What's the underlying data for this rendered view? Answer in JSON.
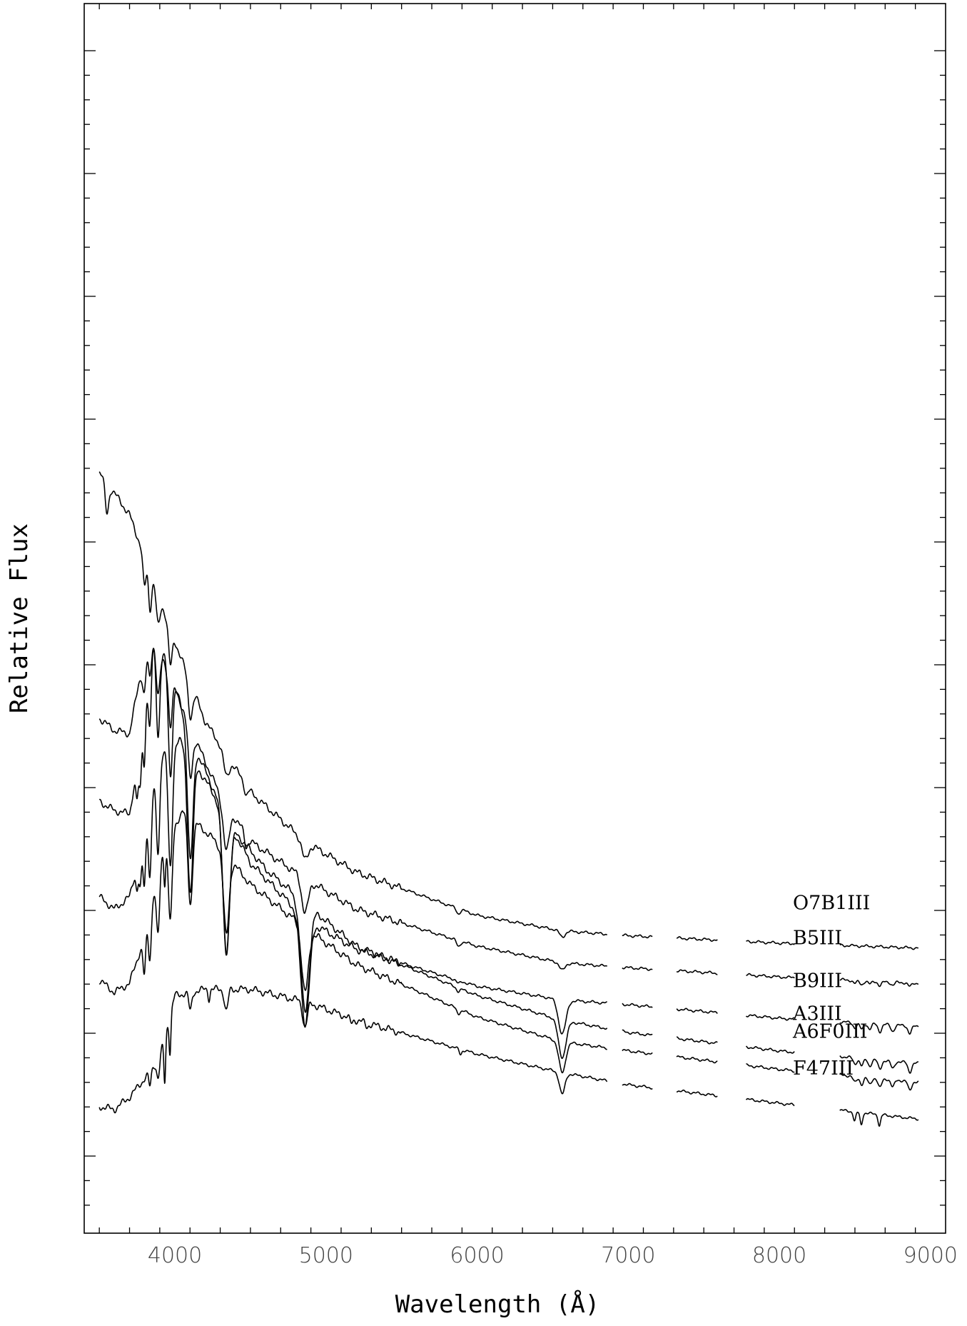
{
  "chart_data": {
    "type": "line",
    "xlabel": "Wavelength (Å)",
    "ylabel": "Relative Flux",
    "xlim": [
      3400,
      9100
    ],
    "xticks": [
      4000,
      5000,
      6000,
      7000,
      8000,
      9000
    ],
    "yticks_labeled": false,
    "grid": false,
    "legend": "labels at right end of each spectrum",
    "series": [
      {
        "name": "O7B1III",
        "offset": 5,
        "continuum": [
          [
            3500,
            12.45
          ],
          [
            3700,
            11.75
          ],
          [
            4000,
            9.7
          ],
          [
            4200,
            8.4
          ],
          [
            4500,
            7.25
          ],
          [
            4860,
            6.45
          ],
          [
            5200,
            5.95
          ],
          [
            6000,
            5.25
          ],
          [
            6560,
            5.0
          ],
          [
            7000,
            4.92
          ],
          [
            8000,
            4.8
          ],
          [
            8900,
            4.72
          ]
        ],
        "lines": [
          [
            3550,
            0.5,
            12
          ],
          [
            3798,
            0.5,
            10
          ],
          [
            3835,
            0.6,
            10
          ],
          [
            3889,
            0.5,
            12
          ],
          [
            3970,
            0.6,
            12
          ],
          [
            4102,
            0.55,
            15
          ],
          [
            4340,
            0.35,
            18
          ],
          [
            4471,
            0.15,
            10
          ],
          [
            4861,
            0.3,
            20
          ],
          [
            5876,
            0.08,
            12
          ],
          [
            6563,
            0.1,
            18
          ]
        ],
        "segments": [
          [
            3500,
            6860
          ],
          [
            6960,
            7160
          ],
          [
            7320,
            7590
          ],
          [
            7780,
            8100
          ],
          [
            8400,
            8920
          ]
        ]
      },
      {
        "name": "B5III",
        "offset": 4,
        "continuum": [
          [
            3500,
            8.45
          ],
          [
            3600,
            8.25
          ],
          [
            3700,
            8.2
          ],
          [
            3760,
            9.0
          ],
          [
            3840,
            9.75
          ],
          [
            3950,
            9.25
          ],
          [
            4100,
            8.3
          ],
          [
            4300,
            7.2
          ],
          [
            4500,
            6.45
          ],
          [
            4860,
            5.85
          ],
          [
            5200,
            5.35
          ],
          [
            6000,
            4.75
          ],
          [
            6560,
            4.48
          ],
          [
            7000,
            4.4
          ],
          [
            8000,
            4.25
          ],
          [
            8900,
            4.15
          ]
        ],
        "lines": [
          [
            3798,
            0.5,
            10
          ],
          [
            3835,
            0.6,
            10
          ],
          [
            3889,
            0.7,
            12
          ],
          [
            3970,
            0.8,
            12
          ],
          [
            4102,
            0.8,
            15
          ],
          [
            4340,
            0.75,
            20
          ],
          [
            4471,
            0.2,
            10
          ],
          [
            4861,
            0.55,
            22
          ],
          [
            5876,
            0.1,
            12
          ],
          [
            6563,
            0.12,
            18
          ],
          [
            8500,
            0.05,
            12
          ],
          [
            8545,
            0.06,
            12
          ],
          [
            8598,
            0.05,
            12
          ],
          [
            8665,
            0.07,
            12
          ],
          [
            8750,
            0.05,
            12
          ],
          [
            8863,
            0.06,
            12
          ]
        ],
        "segments": [
          [
            3500,
            6860
          ],
          [
            6960,
            7160
          ],
          [
            7320,
            7590
          ],
          [
            7780,
            8100
          ],
          [
            8400,
            8920
          ]
        ]
      },
      {
        "name": "B9III",
        "offset": 3,
        "continuum": [
          [
            3500,
            7.1
          ],
          [
            3600,
            6.95
          ],
          [
            3700,
            6.9
          ],
          [
            3760,
            7.8
          ],
          [
            3850,
            9.7
          ],
          [
            3950,
            9.4
          ],
          [
            4100,
            8.15
          ],
          [
            4300,
            7.05
          ],
          [
            4500,
            6.1
          ],
          [
            4860,
            5.2
          ],
          [
            5200,
            4.7
          ],
          [
            6000,
            4.1
          ],
          [
            6560,
            3.88
          ],
          [
            7000,
            3.8
          ],
          [
            8000,
            3.58
          ],
          [
            8900,
            3.45
          ]
        ],
        "lines": [
          [
            3750,
            0.5,
            8
          ],
          [
            3771,
            0.7,
            8
          ],
          [
            3798,
            0.9,
            8
          ],
          [
            3835,
            1.1,
            10
          ],
          [
            3889,
            1.4,
            12
          ],
          [
            3970,
            1.7,
            14
          ],
          [
            4102,
            2.0,
            18
          ],
          [
            4340,
            2.2,
            22
          ],
          [
            4861,
            1.7,
            28
          ],
          [
            5876,
            0.05,
            12
          ],
          [
            6563,
            0.55,
            25
          ],
          [
            8500,
            0.08,
            12
          ],
          [
            8545,
            0.1,
            12
          ],
          [
            8598,
            0.09,
            12
          ],
          [
            8665,
            0.12,
            12
          ],
          [
            8750,
            0.1,
            12
          ],
          [
            8863,
            0.12,
            12
          ]
        ],
        "segments": [
          [
            3500,
            6860
          ],
          [
            6960,
            7160
          ],
          [
            7320,
            7590
          ],
          [
            7780,
            8100
          ],
          [
            8400,
            8920
          ]
        ]
      },
      {
        "name": "A3III",
        "offset": 2,
        "continuum": [
          [
            3500,
            5.55
          ],
          [
            3600,
            5.35
          ],
          [
            3700,
            5.55
          ],
          [
            3780,
            6.4
          ],
          [
            3900,
            7.9
          ],
          [
            4030,
            8.1
          ],
          [
            4200,
            7.45
          ],
          [
            4400,
            6.6
          ],
          [
            4600,
            6.0
          ],
          [
            4860,
            5.45
          ],
          [
            5200,
            4.75
          ],
          [
            6000,
            3.95
          ],
          [
            6560,
            3.55
          ],
          [
            7000,
            3.35
          ],
          [
            8000,
            3.05
          ],
          [
            8900,
            2.85
          ]
        ],
        "lines": [
          [
            3750,
            0.4,
            8
          ],
          [
            3771,
            0.6,
            8
          ],
          [
            3798,
            0.9,
            9
          ],
          [
            3835,
            1.2,
            10
          ],
          [
            3889,
            1.5,
            12
          ],
          [
            3970,
            2.0,
            14
          ],
          [
            4102,
            2.2,
            18
          ],
          [
            4340,
            2.2,
            22
          ],
          [
            4861,
            1.75,
            28
          ],
          [
            5876,
            0.06,
            12
          ],
          [
            6563,
            0.6,
            25
          ],
          [
            8500,
            0.1,
            12
          ],
          [
            8545,
            0.12,
            12
          ],
          [
            8598,
            0.11,
            12
          ],
          [
            8665,
            0.15,
            12
          ],
          [
            8750,
            0.12,
            12
          ],
          [
            8863,
            0.15,
            12
          ]
        ],
        "segments": [
          [
            3500,
            6860
          ],
          [
            6960,
            7160
          ],
          [
            7320,
            7590
          ],
          [
            7780,
            8100
          ],
          [
            8400,
            8920
          ]
        ]
      },
      {
        "name": "A6F0III",
        "offset": 1,
        "continuum": [
          [
            3500,
            4.2
          ],
          [
            3600,
            4.0
          ],
          [
            3700,
            4.15
          ],
          [
            3800,
            4.9
          ],
          [
            3900,
            6.2
          ],
          [
            4050,
            6.95
          ],
          [
            4250,
            6.5
          ],
          [
            4500,
            5.75
          ],
          [
            4860,
            5.05
          ],
          [
            5200,
            4.45
          ],
          [
            6000,
            3.6
          ],
          [
            6560,
            3.2
          ],
          [
            7000,
            3.05
          ],
          [
            8000,
            2.75
          ],
          [
            8900,
            2.55
          ]
        ],
        "lines": [
          [
            3798,
            0.6,
            9
          ],
          [
            3835,
            0.8,
            10
          ],
          [
            3889,
            1.1,
            12
          ],
          [
            3933,
            0.6,
            6
          ],
          [
            3970,
            1.4,
            12
          ],
          [
            4102,
            1.4,
            15
          ],
          [
            4340,
            1.3,
            18
          ],
          [
            4861,
            1.05,
            22
          ],
          [
            5876,
            0.07,
            12
          ],
          [
            6563,
            0.5,
            22
          ],
          [
            8500,
            0.1,
            12
          ],
          [
            8545,
            0.12,
            12
          ],
          [
            8598,
            0.11,
            12
          ],
          [
            8665,
            0.15,
            12
          ],
          [
            8750,
            0.12,
            12
          ],
          [
            8863,
            0.15,
            12
          ]
        ],
        "segments": [
          [
            3500,
            6860
          ],
          [
            6960,
            7160
          ],
          [
            7320,
            7590
          ],
          [
            7780,
            8100
          ],
          [
            8400,
            8920
          ]
        ]
      },
      {
        "name": "F47III",
        "offset": 0,
        "continuum": [
          [
            3500,
            2.15
          ],
          [
            3600,
            2.1
          ],
          [
            3700,
            2.3
          ],
          [
            3800,
            2.6
          ],
          [
            3900,
            2.95
          ],
          [
            4000,
            3.95
          ],
          [
            4200,
            4.05
          ],
          [
            4500,
            4.05
          ],
          [
            4860,
            3.85
          ],
          [
            5200,
            3.55
          ],
          [
            6000,
            3.0
          ],
          [
            6560,
            2.7
          ],
          [
            7000,
            2.5
          ],
          [
            8000,
            2.2
          ],
          [
            8900,
            1.95
          ]
        ],
        "lines": [
          [
            3835,
            0.25,
            8
          ],
          [
            3889,
            0.3,
            9
          ],
          [
            3933,
            0.75,
            6
          ],
          [
            3968,
            0.6,
            6
          ],
          [
            4102,
            0.3,
            10
          ],
          [
            4226,
            0.15,
            6
          ],
          [
            4340,
            0.35,
            12
          ],
          [
            4861,
            0.4,
            15
          ],
          [
            5167,
            0.08,
            10
          ],
          [
            5270,
            0.06,
            10
          ],
          [
            5890,
            0.08,
            8
          ],
          [
            6563,
            0.35,
            18
          ],
          [
            8498,
            0.15,
            8
          ],
          [
            8542,
            0.2,
            8
          ],
          [
            8662,
            0.18,
            8
          ]
        ],
        "segments": [
          [
            3500,
            6860
          ],
          [
            6960,
            7160
          ],
          [
            7320,
            7590
          ],
          [
            7780,
            8100
          ],
          [
            8400,
            8920
          ]
        ]
      }
    ]
  }
}
